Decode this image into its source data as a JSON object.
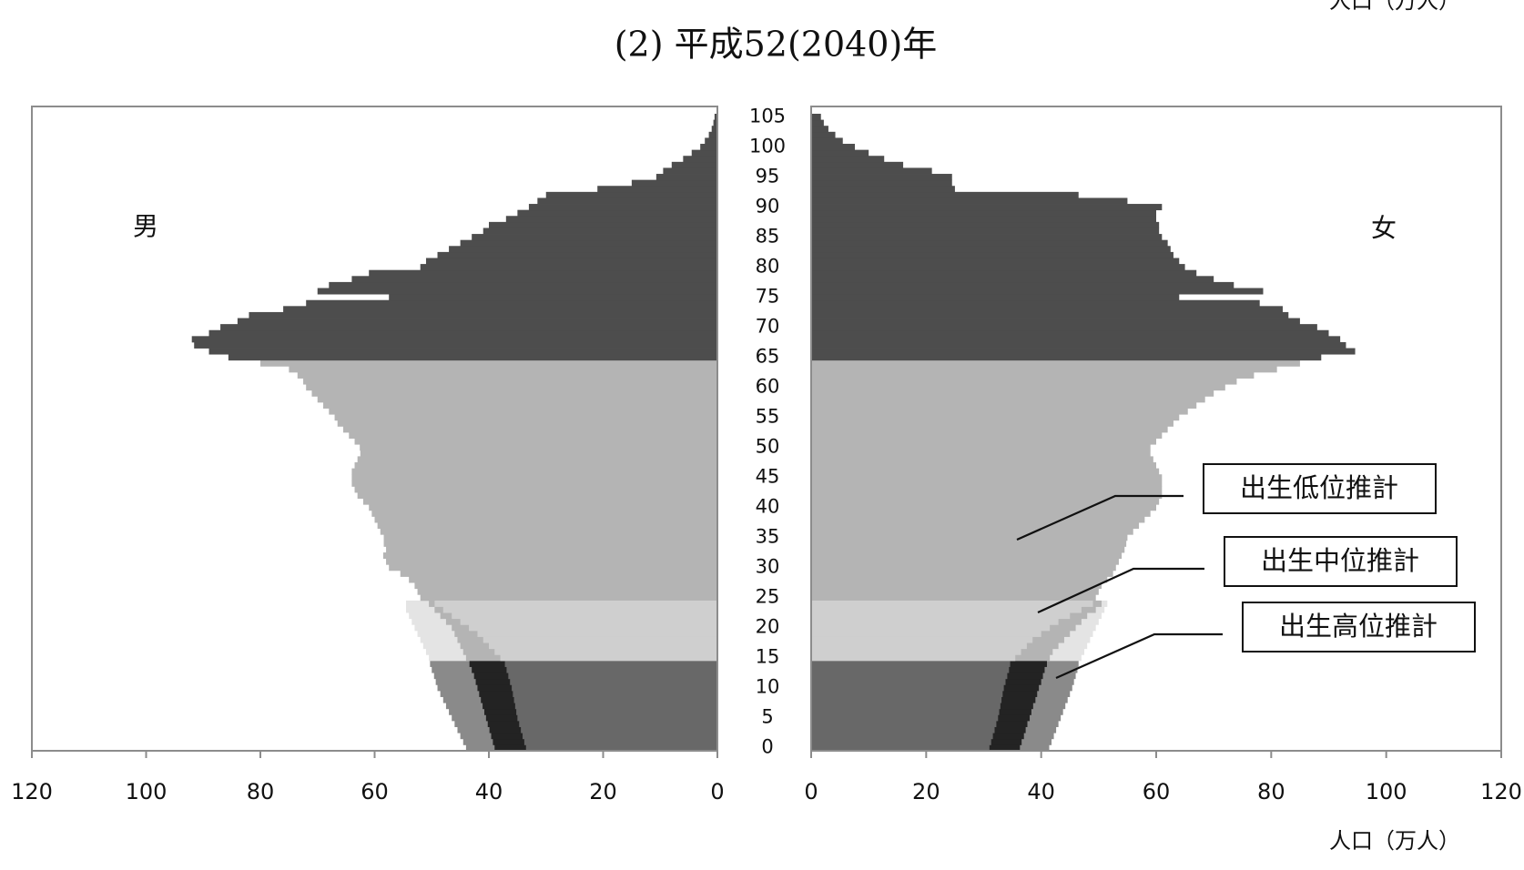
{
  "chart_data": {
    "type": "pyramid",
    "title": "(2) 平成52(2040)年",
    "x_label": "人口（万人）",
    "left_label": "男",
    "right_label": "女",
    "xlim": [
      0,
      120
    ],
    "xticks": [
      0,
      20,
      40,
      60,
      80,
      100,
      120
    ],
    "ylim": [
      0,
      106
    ],
    "yticks": [
      0,
      5,
      10,
      15,
      20,
      25,
      30,
      35,
      40,
      45,
      50,
      55,
      60,
      65,
      70,
      75,
      80,
      85,
      90,
      95,
      100,
      105
    ],
    "age_groups": [
      {
        "start": 0
      },
      {
        "start": 15
      },
      {
        "start": 65
      }
    ],
    "y": [
      0,
      1,
      2,
      3,
      4,
      5,
      6,
      7,
      8,
      9,
      10,
      11,
      12,
      13,
      14,
      15,
      16,
      17,
      18,
      19,
      20,
      21,
      22,
      23,
      24,
      25,
      26,
      27,
      28,
      29,
      30,
      31,
      32,
      33,
      34,
      35,
      36,
      37,
      38,
      39,
      40,
      41,
      42,
      43,
      44,
      45,
      46,
      47,
      48,
      49,
      50,
      51,
      52,
      53,
      54,
      55,
      56,
      57,
      58,
      59,
      60,
      61,
      62,
      63,
      64,
      65,
      66,
      67,
      68,
      69,
      70,
      71,
      72,
      73,
      74,
      75,
      76,
      77,
      78,
      79,
      80,
      81,
      82,
      83,
      84,
      85,
      86,
      87,
      88,
      89,
      90,
      91,
      92,
      93,
      94,
      95,
      96,
      97,
      98,
      99,
      100,
      101,
      102,
      103,
      104,
      105
    ],
    "series": [
      {
        "name": "出生高位推計",
        "colors": [
          "#8a8a8a",
          "#e4e4e4",
          "#e4e4e4"
        ],
        "male": [
          44,
          44.5,
          45,
          45.5,
          46,
          46.5,
          47,
          47.5,
          48,
          48.5,
          49,
          49.3,
          49.6,
          50,
          50.3,
          50.5,
          51,
          51.5,
          52,
          52.5,
          53,
          53.5,
          54,
          54.5,
          54.5,
          null,
          null,
          null,
          null,
          null,
          null,
          null,
          null,
          null,
          null,
          null,
          null,
          null,
          null,
          null,
          null,
          null,
          null,
          null,
          null,
          null,
          null,
          null,
          null,
          null,
          null,
          null,
          null,
          null,
          null,
          null,
          null,
          null,
          null,
          null,
          null,
          null,
          null,
          null,
          null,
          null,
          null,
          null,
          null,
          null,
          null,
          null,
          null,
          null,
          null,
          null,
          null,
          null,
          null,
          null,
          null,
          null,
          null,
          null,
          null,
          null,
          null,
          null,
          null,
          null,
          null,
          null,
          null,
          null,
          null,
          null,
          null,
          null,
          null,
          null,
          null,
          null,
          null,
          null,
          null,
          null
        ],
        "female": [
          41.4,
          41.8,
          42.2,
          42.6,
          43,
          43.4,
          43.8,
          44.2,
          44.6,
          45,
          45.4,
          45.7,
          46,
          46.3,
          46.5,
          47,
          47.5,
          48,
          48.5,
          49,
          49.5,
          50,
          50.5,
          51,
          51.5,
          null,
          null,
          null,
          null,
          null,
          null,
          null,
          null,
          null,
          null,
          null,
          null,
          null,
          null,
          null,
          null,
          null,
          null,
          null,
          null,
          null,
          null,
          null,
          null,
          null,
          null,
          null,
          null,
          null,
          null,
          null,
          null,
          null,
          null,
          null,
          null,
          null,
          null,
          null,
          null,
          null,
          null,
          null,
          null,
          null,
          null,
          null,
          null,
          null,
          null,
          null,
          null,
          null,
          null,
          null,
          null,
          null,
          null,
          null,
          null,
          null,
          null,
          null,
          null,
          null,
          null,
          null,
          null,
          null,
          null,
          null,
          null,
          null,
          null,
          null,
          null,
          null,
          null,
          null,
          null,
          null
        ]
      },
      {
        "name": "出生中位推計",
        "colors": [
          "#232323",
          "#b4b4b4",
          "#4d4d4d"
        ],
        "male": [
          39,
          39.3,
          39.6,
          39.9,
          40.2,
          40.5,
          40.8,
          41.1,
          41.4,
          41.7,
          42,
          42.3,
          42.6,
          43,
          43.4,
          44,
          44.5,
          45,
          45.5,
          46,
          46.5,
          47.5,
          48.5,
          49.5,
          50.5,
          52,
          52.5,
          53,
          54,
          55.5,
          57.5,
          58,
          58.5,
          58,
          58.4,
          58.4,
          59,
          59.5,
          60,
          60.5,
          61,
          62,
          63,
          63.5,
          64,
          64,
          64,
          63.5,
          63,
          62.5,
          62.6,
          63.5,
          64.5,
          65.5,
          66.5,
          67,
          68,
          69,
          70,
          71,
          72,
          72.5,
          73.5,
          75,
          80,
          85.6,
          89,
          91.6,
          92,
          89,
          87,
          84,
          82,
          76,
          72,
          57.5,
          70,
          68,
          64,
          61,
          52,
          51,
          49,
          47,
          45,
          43,
          41,
          40,
          37,
          35,
          33,
          31.5,
          30,
          21,
          15,
          10.7,
          9.5,
          8,
          6,
          4.5,
          3,
          2.2,
          1.5,
          1,
          0.7,
          0.5
        ],
        "female": [
          36.3,
          36.6,
          37,
          37.3,
          37.6,
          38,
          38.3,
          38.6,
          39,
          39.3,
          39.6,
          40,
          40.3,
          40.6,
          41,
          41.5,
          42,
          43,
          44,
          45,
          46,
          47,
          48,
          49.5,
          50.5,
          49.5,
          50,
          50.5,
          51.5,
          52.5,
          53,
          53.5,
          54,
          54.5,
          54.8,
          55,
          56,
          57,
          58,
          59,
          60,
          60.5,
          61,
          61,
          61,
          61,
          60.5,
          60,
          59.5,
          59,
          59,
          60,
          61,
          62,
          63,
          64,
          65.5,
          67,
          68.5,
          70,
          72,
          74,
          77,
          81,
          85,
          88.7,
          94.6,
          93,
          92,
          90,
          88,
          85,
          83,
          82,
          78,
          64,
          78.6,
          73.5,
          70,
          67,
          65,
          64,
          63,
          62.5,
          62,
          61,
          60.5,
          60.5,
          60,
          60,
          61,
          55,
          46.5,
          25,
          24.5,
          24.5,
          21,
          16,
          12.7,
          10,
          7.6,
          5.5,
          4.2,
          3,
          2.2,
          1.7
        ]
      },
      {
        "name": "出生低位推計",
        "colors": [
          "#686868",
          "#cfcfcf",
          "#4d4d4d"
        ],
        "male": [
          33.5,
          33.8,
          34.1,
          34.4,
          34.7,
          35,
          35.2,
          35.4,
          35.6,
          35.8,
          36,
          36.3,
          36.6,
          36.9,
          37.2,
          38,
          39,
          40,
          41,
          42,
          43.5,
          45,
          46.5,
          48,
          49.5,
          null,
          null,
          null,
          null,
          null,
          null,
          null,
          null,
          null,
          null,
          null,
          null,
          null,
          null,
          null,
          null,
          null,
          null,
          null,
          null,
          null,
          null,
          null,
          null,
          null,
          null,
          null,
          null,
          null,
          null,
          null,
          null,
          null,
          null,
          null,
          null,
          null,
          null,
          null,
          null,
          null,
          null,
          null,
          null,
          null,
          null,
          null,
          null,
          null,
          null,
          null,
          null,
          null,
          null,
          null,
          null,
          null,
          null,
          null,
          null,
          null,
          null,
          null,
          null,
          null,
          null,
          null,
          null,
          null,
          null,
          null,
          null,
          null,
          null,
          null,
          null,
          null,
          null,
          null,
          null,
          null
        ],
        "female": [
          31,
          31.3,
          31.6,
          31.9,
          32.2,
          32.5,
          32.7,
          32.9,
          33.1,
          33.3,
          33.5,
          33.8,
          34.1,
          34.4,
          34.6,
          35.5,
          36.5,
          37.5,
          38.5,
          40,
          41.5,
          43,
          45,
          47,
          49,
          null,
          null,
          null,
          null,
          null,
          null,
          null,
          null,
          null,
          null,
          null,
          null,
          null,
          null,
          null,
          null,
          null,
          null,
          null,
          null,
          null,
          null,
          null,
          null,
          null,
          null,
          null,
          null,
          null,
          null,
          null,
          null,
          null,
          null,
          null,
          null,
          null,
          null,
          null,
          null,
          null,
          null,
          null,
          null,
          null,
          null,
          null,
          null,
          null,
          null,
          null,
          null,
          null,
          null,
          null,
          null,
          null,
          null,
          null,
          null,
          null,
          null,
          null,
          null,
          null,
          null,
          null,
          null,
          null,
          null,
          null,
          null,
          null,
          null,
          null,
          null,
          null,
          null,
          null,
          null,
          null
        ]
      }
    ]
  }
}
